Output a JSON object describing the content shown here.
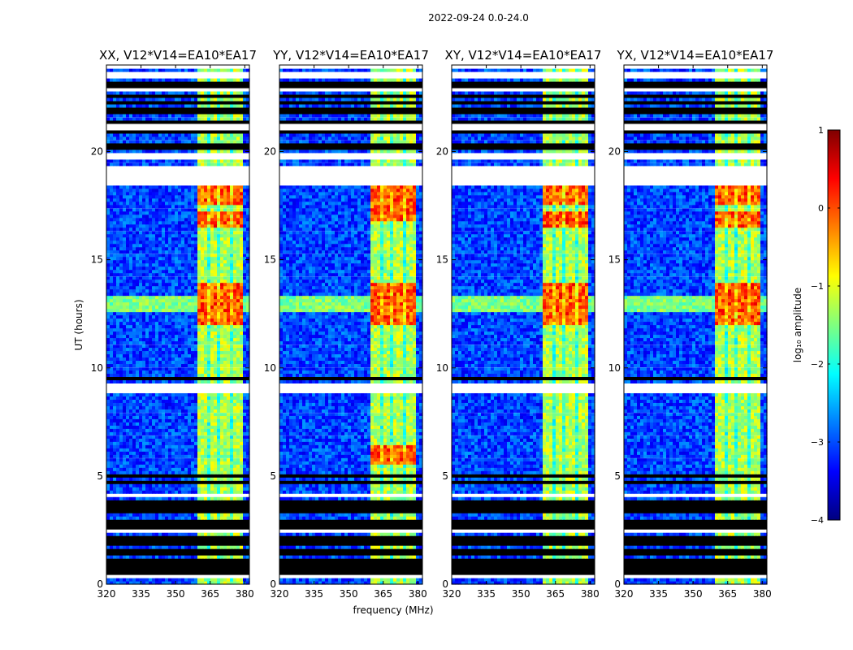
{
  "figure_title": "2022-09-24 0.0-24.0",
  "colors": {
    "colormap": [
      "#00007f",
      "#0000ff",
      "#007fff",
      "#00ffff",
      "#7fff7f",
      "#ffff00",
      "#ff7f00",
      "#ff0000",
      "#7f0000"
    ],
    "flagged": "#000000",
    "gap": "#ffffff"
  },
  "chart_data": [
    {
      "type": "heatmap",
      "title": "XX, V12*V14=EA10*EA17",
      "xlabel": "",
      "ylabel": "UT (hours)",
      "xlim": [
        320,
        382
      ],
      "ylim": [
        0,
        24
      ],
      "xticks": [
        320,
        335,
        350,
        365,
        380
      ],
      "yticks": [
        0,
        5,
        10,
        15,
        20
      ],
      "band_mhz": [
        359,
        379
      ],
      "bright_hours": [
        [
          12,
          14
        ],
        [
          16.5,
          17.2
        ],
        [
          17.6,
          18.4
        ]
      ]
    },
    {
      "type": "heatmap",
      "title": "YY, V12*V14=EA10*EA17",
      "xlabel": "frequency (MHz)",
      "ylabel": "",
      "xlim": [
        320,
        382
      ],
      "ylim": [
        0,
        24
      ],
      "xticks": [
        320,
        335,
        350,
        365,
        380
      ],
      "yticks": [
        0,
        5,
        10,
        15,
        20
      ],
      "band_mhz": [
        359,
        379
      ],
      "bright_hours": [
        [
          12,
          14
        ],
        [
          16.8,
          18.4
        ],
        [
          5.5,
          6.5
        ]
      ]
    },
    {
      "type": "heatmap",
      "title": "XY, V12*V14=EA10*EA17",
      "xlabel": "",
      "ylabel": "",
      "xlim": [
        320,
        382
      ],
      "ylim": [
        0,
        24
      ],
      "xticks": [
        320,
        335,
        350,
        365,
        380
      ],
      "yticks": [
        0,
        5,
        10,
        15,
        20
      ],
      "band_mhz": [
        359,
        379
      ],
      "bright_hours": [
        [
          12,
          14
        ],
        [
          16.5,
          17.2
        ],
        [
          17.6,
          18.4
        ]
      ]
    },
    {
      "type": "heatmap",
      "title": "YX, V12*V14=EA10*EA17",
      "xlabel": "",
      "ylabel": "",
      "xlim": [
        320,
        382
      ],
      "ylim": [
        0,
        24
      ],
      "xticks": [
        320,
        335,
        350,
        365,
        380
      ],
      "yticks": [
        0,
        5,
        10,
        15,
        20
      ],
      "band_mhz": [
        359,
        379
      ],
      "bright_hours": [
        [
          12,
          14
        ],
        [
          16.5,
          17.2
        ],
        [
          17.6,
          18.4
        ]
      ]
    }
  ],
  "flagged_hours": [
    [
      0.5,
      1.0
    ],
    [
      1.1,
      1.2
    ],
    [
      1.3,
      1.6
    ],
    [
      1.8,
      2.3
    ],
    [
      2.6,
      2.95
    ],
    [
      3.1,
      3.2
    ],
    [
      3.3,
      3.4
    ],
    [
      3.5,
      3.9
    ],
    [
      4.3,
      4.4
    ],
    [
      4.6,
      4.8
    ],
    [
      4.9,
      5.1
    ],
    [
      9.5,
      9.6
    ],
    [
      9.7,
      9.8
    ],
    [
      20.1,
      20.4
    ],
    [
      20.8,
      21.0
    ],
    [
      21.3,
      21.5
    ],
    [
      21.7,
      22.0
    ],
    [
      22.2,
      22.4
    ],
    [
      22.5,
      22.7
    ],
    [
      23.0,
      23.3
    ]
  ],
  "gap_hours": [
    [
      0.25,
      0.4
    ],
    [
      2.35,
      2.55
    ],
    [
      4.0,
      4.25
    ],
    [
      8.9,
      9.35
    ],
    [
      18.5,
      19.4
    ],
    [
      19.6,
      20.0
    ],
    [
      21.0,
      21.25
    ],
    [
      22.8,
      23.0
    ],
    [
      23.35,
      23.7
    ],
    [
      23.8,
      24.0
    ]
  ],
  "colorbar": {
    "label": "log₁₀ amplitude",
    "min": -4,
    "max": 1,
    "ticks": [
      "1",
      "0",
      "−1",
      "−2",
      "−3",
      "−4"
    ],
    "tick_values": [
      1,
      0,
      -1,
      -2,
      -3,
      -4
    ]
  }
}
